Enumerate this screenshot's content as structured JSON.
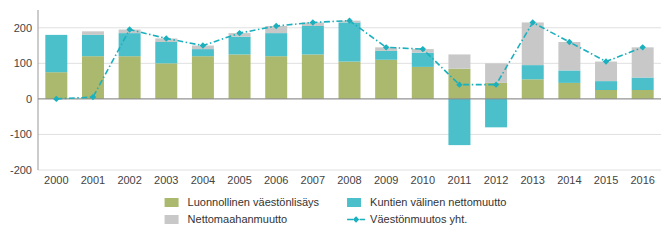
{
  "chart_data": {
    "type": "bar",
    "stacked": true,
    "categories": [
      "2000",
      "2001",
      "2002",
      "2003",
      "2004",
      "2005",
      "2006",
      "2007",
      "2008",
      "2009",
      "2010",
      "2011",
      "2012",
      "2013",
      "2014",
      "2015",
      "2016"
    ],
    "series": [
      {
        "name": "Luonnollinen väestönlisäys",
        "type": "bar",
        "color": "#aab96e",
        "values": [
          75,
          120,
          120,
          100,
          120,
          125,
          120,
          125,
          105,
          110,
          90,
          85,
          45,
          55,
          45,
          25,
          25
        ]
      },
      {
        "name": "Kuntien välinen nettomuutto",
        "type": "bar",
        "color": "#4bbfca",
        "values": [
          105,
          60,
          65,
          60,
          20,
          50,
          65,
          80,
          110,
          25,
          40,
          -130,
          -80,
          40,
          35,
          25,
          35
        ]
      },
      {
        "name": "Nettomaahanmuutto",
        "type": "bar",
        "color": "#c8c8c8",
        "values": [
          0,
          10,
          10,
          10,
          10,
          10,
          20,
          10,
          5,
          10,
          10,
          40,
          55,
          120,
          80,
          55,
          85
        ]
      },
      {
        "name": "Väestönmuutos yht.",
        "type": "line",
        "color": "#1ab0be",
        "marker": "diamond",
        "line_style": "dashdot",
        "values": [
          0,
          5,
          195,
          170,
          150,
          185,
          205,
          215,
          220,
          145,
          140,
          40,
          40,
          215,
          160,
          105,
          145
        ]
      }
    ],
    "ylim": [
      -200,
      250
    ],
    "yticks": [
      -200,
      -100,
      0,
      100,
      200
    ],
    "grid": true,
    "legend": "bottom"
  }
}
